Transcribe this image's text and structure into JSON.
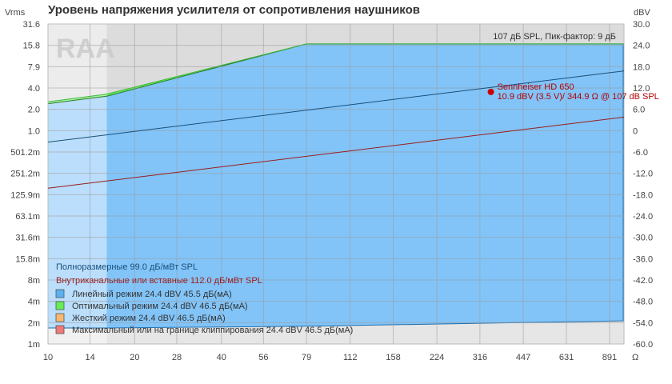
{
  "chart_data": {
    "type": "line",
    "title": "Уровень напряжения усилителя от сопротивления наушников",
    "y_left_label": "Vrms",
    "y_right_label": "dBV",
    "x_unit_label": "Ω",
    "info_text": "107 дБ SPL, Пик-фактор: 9 дБ",
    "x_scale": "log",
    "xlim": [
      10,
      1000
    ],
    "x_ticks": [
      {
        "v": 10,
        "label": "10"
      },
      {
        "v": 14,
        "label": "14"
      },
      {
        "v": 20,
        "label": "20"
      },
      {
        "v": 28,
        "label": "28"
      },
      {
        "v": 40,
        "label": "40"
      },
      {
        "v": 56,
        "label": "56"
      },
      {
        "v": 79,
        "label": "79"
      },
      {
        "v": 112,
        "label": "112"
      },
      {
        "v": 158,
        "label": "158"
      },
      {
        "v": 224,
        "label": "224"
      },
      {
        "v": 316,
        "label": "316"
      },
      {
        "v": 447,
        "label": "447"
      },
      {
        "v": 631,
        "label": "631"
      },
      {
        "v": 891,
        "label": "891"
      }
    ],
    "y_scale": "dBV",
    "ylim_dbv": [
      -60,
      30
    ],
    "y_left_ticks": [
      "1m",
      "2m",
      "4m",
      "8m",
      "15.8m",
      "31.6m",
      "63.1m",
      "125.9m",
      "251.2m",
      "501.2m",
      "1.0",
      "2.0",
      "4.0",
      "7.9",
      "15.8",
      "31.6"
    ],
    "y_right_ticks": [
      "-60.0",
      "-54.0",
      "-48.0",
      "-42.0",
      "-36.0",
      "-30.0",
      "-24.0",
      "-18.0",
      "-12.0",
      "-6.0",
      "0",
      "6.0",
      "12.0",
      "18.0",
      "24.0",
      "30.0"
    ],
    "grid": true,
    "series": [
      {
        "name": "Полноразмерные 99.0 дБ/мВт SPL",
        "color": "#1a4f7a",
        "x": [
          10,
          1000
        ],
        "y_dbv": [
          -3.2,
          16.8
        ]
      },
      {
        "name": "Внутриканальные или вставные 112.0 дБ/мВт SPL",
        "color": "#9b1c1c",
        "x": [
          10,
          1000
        ],
        "y_dbv": [
          -16.2,
          3.8
        ]
      }
    ],
    "regions": [
      {
        "name": "Линейный режим 24.4 dBV 45.5 дБ(мА)",
        "color": "#5ab0f0"
      },
      {
        "name": "Оптимальный режим 24.4 dBV 46.5 дБ(мА)",
        "color": "#66ee55"
      },
      {
        "name": "Жесткий режим 24.4 dBV 46.5 дБ(мА)",
        "color": "#f8b870"
      },
      {
        "name": "Максимальный или на границе клиппирования 24.4 dBV 46.5 дБ(мА)",
        "color": "#f07878"
      }
    ],
    "region_boundary": {
      "x": [
        10,
        16,
        79,
        1000
      ],
      "top_linear_dbv": [
        7.6,
        9.7,
        24.4,
        24.4
      ],
      "top_optimal_dbv": [
        8.1,
        10.3,
        24.4,
        24.4
      ],
      "floor_dbv": [
        -55.5,
        -55.5,
        -55.0,
        -53.5
      ],
      "shaded_x_max": 16
    },
    "annotation": {
      "label": "Sennheiser HD 650",
      "detail": "10.9 dBV (3.5 V)/ 344.9 Ω @ 107 dB SPL",
      "x": 344.9,
      "y_dbv": 10.9,
      "color": "#cc0000"
    }
  }
}
